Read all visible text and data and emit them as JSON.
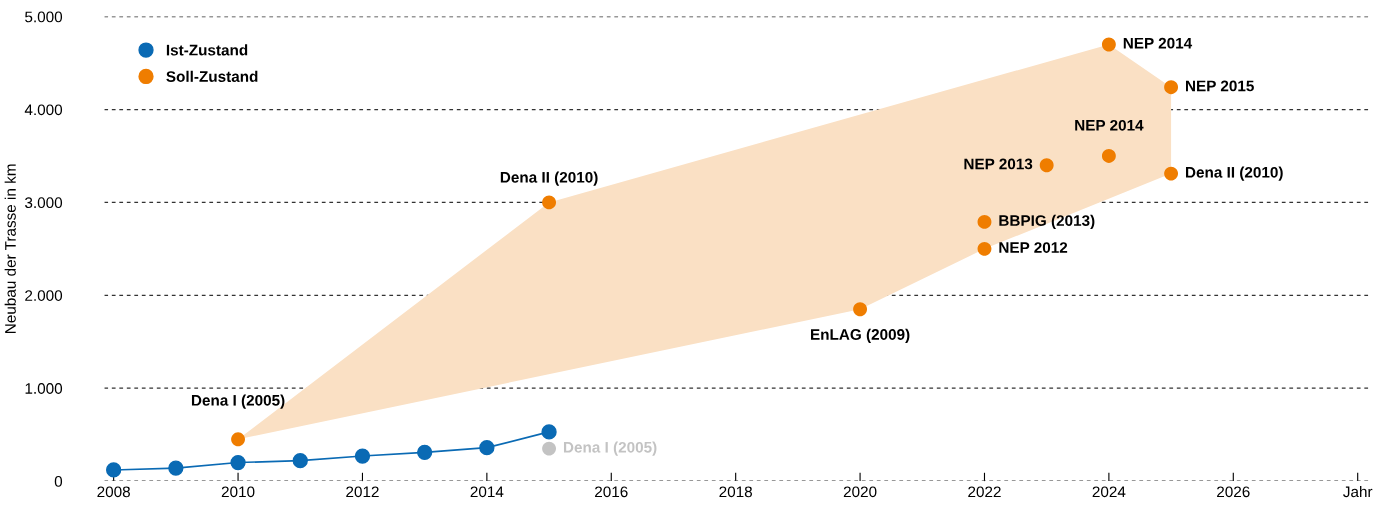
{
  "chart_data": {
    "type": "line",
    "ylabel": "Neubau der Trasse in km",
    "xlim": [
      2007.85,
      2028.2
    ],
    "xticks": [
      2008,
      2010,
      2012,
      2014,
      2016,
      2018,
      2020,
      2022,
      2024,
      2026,
      {
        "value": 2028,
        "label": "Jahr"
      }
    ],
    "ylim": [
      0,
      5000
    ],
    "yticks": [
      {
        "value": 0,
        "label": "0"
      },
      {
        "value": 1000,
        "label": "1.000"
      },
      {
        "value": 2000,
        "label": "2.000"
      },
      {
        "value": 3000,
        "label": "3.000"
      },
      {
        "value": 4000,
        "label": "4.000"
      },
      {
        "value": 5000,
        "label": "5.000"
      }
    ],
    "grid": "y",
    "legend": "top left",
    "series": [
      {
        "type": "area",
        "color": "#fae0c4",
        "x": [
          2010,
          2015,
          2024,
          2025,
          2025,
          2022,
          2020,
          2010
        ],
        "values": [
          450,
          3000,
          4700,
          4240,
          3310,
          2500,
          1850,
          450
        ]
      },
      {
        "name": "Ist-Zustand",
        "color": "#0a6ab4",
        "marker": "circle",
        "x": [
          2008,
          2009,
          2010,
          2011,
          2012,
          2013,
          2014,
          2015
        ],
        "values": [
          120,
          140,
          200,
          220,
          270,
          310,
          360,
          530
        ]
      },
      {
        "type": "scatter",
        "name": "Soll-Zustand",
        "color": "#ef7d00",
        "marker": "circle",
        "x": [
          2010,
          2015,
          2020,
          2022,
          2022,
          2023,
          2024,
          2024,
          2025,
          2025
        ],
        "values": [
          450,
          3000,
          1850,
          2790,
          2500,
          3400,
          3500,
          4700,
          4240,
          3310
        ]
      },
      {
        "type": "scatter",
        "color": "#c3c3c3",
        "marker": "circle",
        "x": [
          2015
        ],
        "values": [
          350
        ]
      }
    ],
    "annotations": [
      {
        "text": "Dena I (2005)",
        "x": 2010,
        "y": 450
      },
      {
        "text": "Dena II (2010)",
        "x": 2015,
        "y": 3000
      },
      {
        "text": "EnLAG (2009)",
        "x": 2020,
        "y": 1850
      },
      {
        "text": "BBPIG (2013)",
        "x": 2022,
        "y": 2790
      },
      {
        "text": "NEP 2012",
        "x": 2022,
        "y": 2500
      },
      {
        "text": "NEP 2013",
        "x": 2023,
        "y": 3400
      },
      {
        "text": "NEP 2014",
        "x": 2024,
        "y": 3500
      },
      {
        "text": "NEP 2014",
        "x": 2024,
        "y": 4700
      },
      {
        "text": "NEP 2015",
        "x": 2025,
        "y": 4240
      },
      {
        "text": "Dena II (2010)",
        "x": 2025,
        "y": 3310
      },
      {
        "text": "Dena I (2005)",
        "x": 2015,
        "y": 350
      }
    ]
  }
}
